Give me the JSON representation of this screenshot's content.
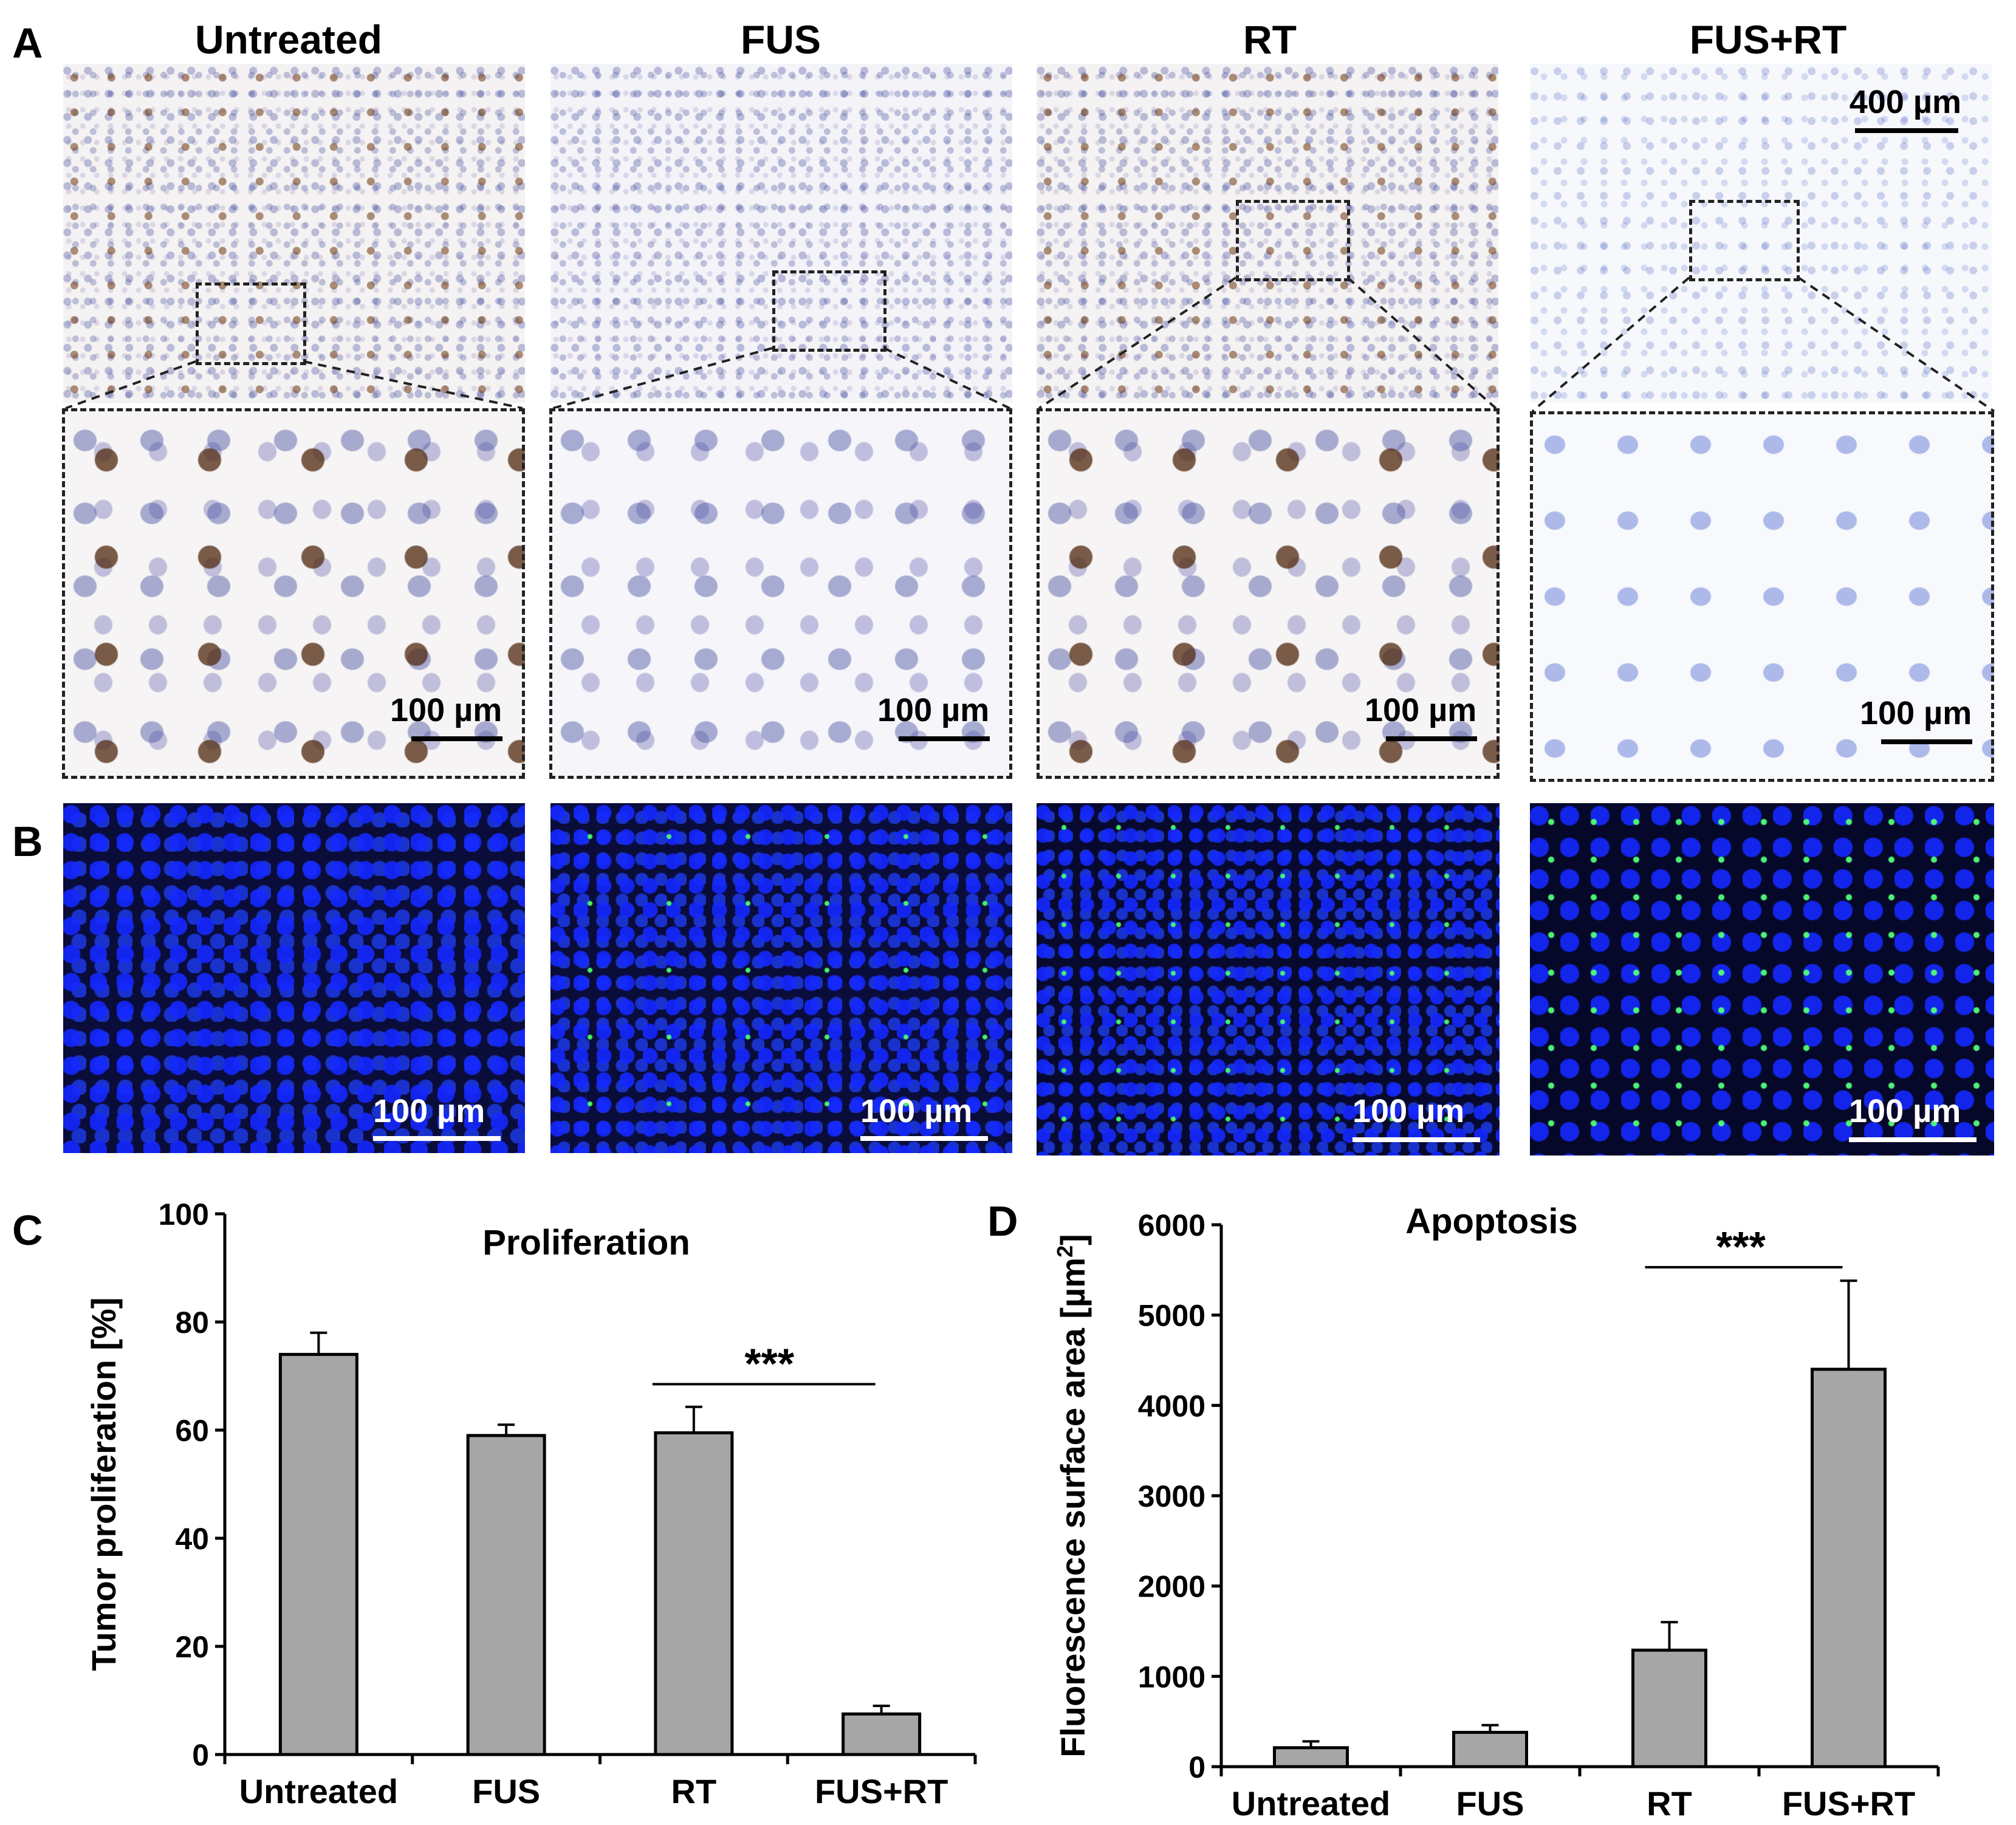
{
  "panel_letters": {
    "a": "A",
    "b": "B",
    "c": "C",
    "d": "D"
  },
  "columns": [
    "Untreated",
    "FUS",
    "RT",
    "FUS+RT"
  ],
  "scalebars": {
    "overview": "400 µm",
    "zoom": "100 µm",
    "fluorescence": "100 µm"
  },
  "chart_data": [
    {
      "type": "bar",
      "title": "Proliferation",
      "ylabel": "Tumor proliferation [%]",
      "categories": [
        "Untreated",
        "FUS",
        "RT",
        "FUS+RT"
      ],
      "values": [
        74,
        59,
        59.5,
        7.5
      ],
      "errors": [
        4,
        2,
        4.8,
        1.5
      ],
      "ylim": [
        0,
        100
      ],
      "yticks": [
        0,
        20,
        40,
        60,
        80,
        100
      ],
      "bar_color": "#a6a6a6",
      "significance": {
        "from": "RT",
        "to": "FUS+RT",
        "label": "***"
      }
    },
    {
      "type": "bar",
      "title": "Apoptosis",
      "ylabel": "Fluorescence surface area [µm",
      "ylabel_sup": "2",
      "ylabel_end": "]",
      "categories": [
        "Untreated",
        "FUS",
        "RT",
        "FUS+RT"
      ],
      "values": [
        210,
        380,
        1290,
        4400
      ],
      "errors": [
        70,
        80,
        310,
        980
      ],
      "ylim": [
        0,
        6000
      ],
      "yticks": [
        0,
        1000,
        2000,
        3000,
        4000,
        5000,
        6000
      ],
      "bar_color": "#a6a6a6",
      "significance": {
        "from": "RT",
        "to": "FUS+RT",
        "label": "***"
      }
    }
  ]
}
